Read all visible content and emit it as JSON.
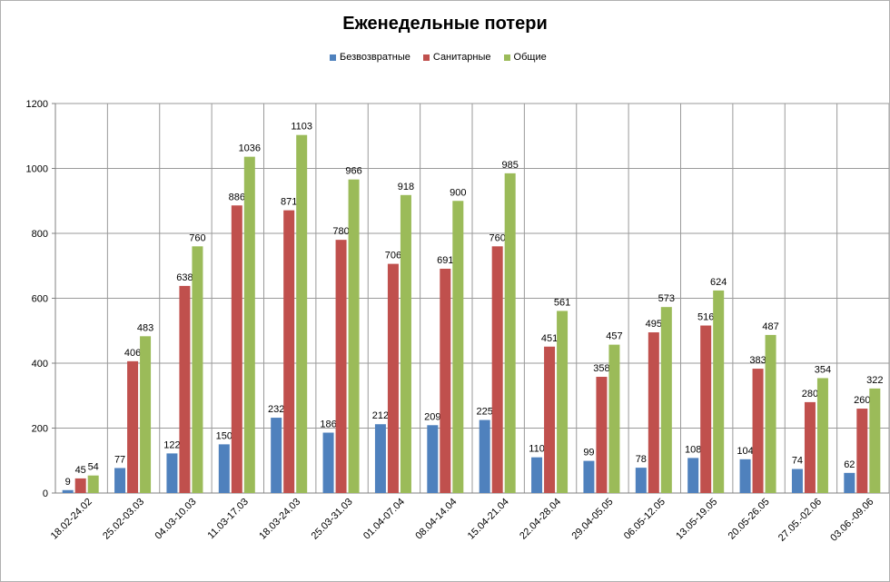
{
  "chart_data": {
    "type": "bar",
    "title": "Еженедельные потери",
    "categories": [
      "18.02-24.02",
      "25.02-03.03",
      "04.03-10.03",
      "11.03-17.03",
      "18.03-24.03",
      "25.03-31.03",
      "01.04-07.04",
      "08.04-14.04",
      "15.04-21.04",
      "22.04-28.04",
      "29.04-05.05",
      "06.05-12.05",
      "13.05-19.05",
      "20.05-26.05",
      "27.05.-02.06",
      "03.06.-09.06"
    ],
    "series": [
      {
        "name": "Безвозвратные",
        "color": "#4F81BD",
        "values": [
          9,
          77,
          122,
          150,
          232,
          186,
          212,
          209,
          225,
          110,
          99,
          78,
          108,
          104,
          74,
          62
        ]
      },
      {
        "name": "Санитарные",
        "color": "#C0504D",
        "values": [
          45,
          406,
          638,
          886,
          871,
          780,
          706,
          691,
          760,
          451,
          358,
          495,
          516,
          383,
          280,
          260
        ]
      },
      {
        "name": "Общие",
        "color": "#9BBB59",
        "values": [
          54,
          483,
          760,
          1036,
          1103,
          966,
          918,
          900,
          985,
          561,
          457,
          573,
          624,
          487,
          354,
          322
        ]
      }
    ],
    "ylim": [
      0,
      1200
    ],
    "yticks": [
      0,
      200,
      400,
      600,
      800,
      1000,
      1200
    ],
    "grid": true,
    "legend_position": "top"
  }
}
